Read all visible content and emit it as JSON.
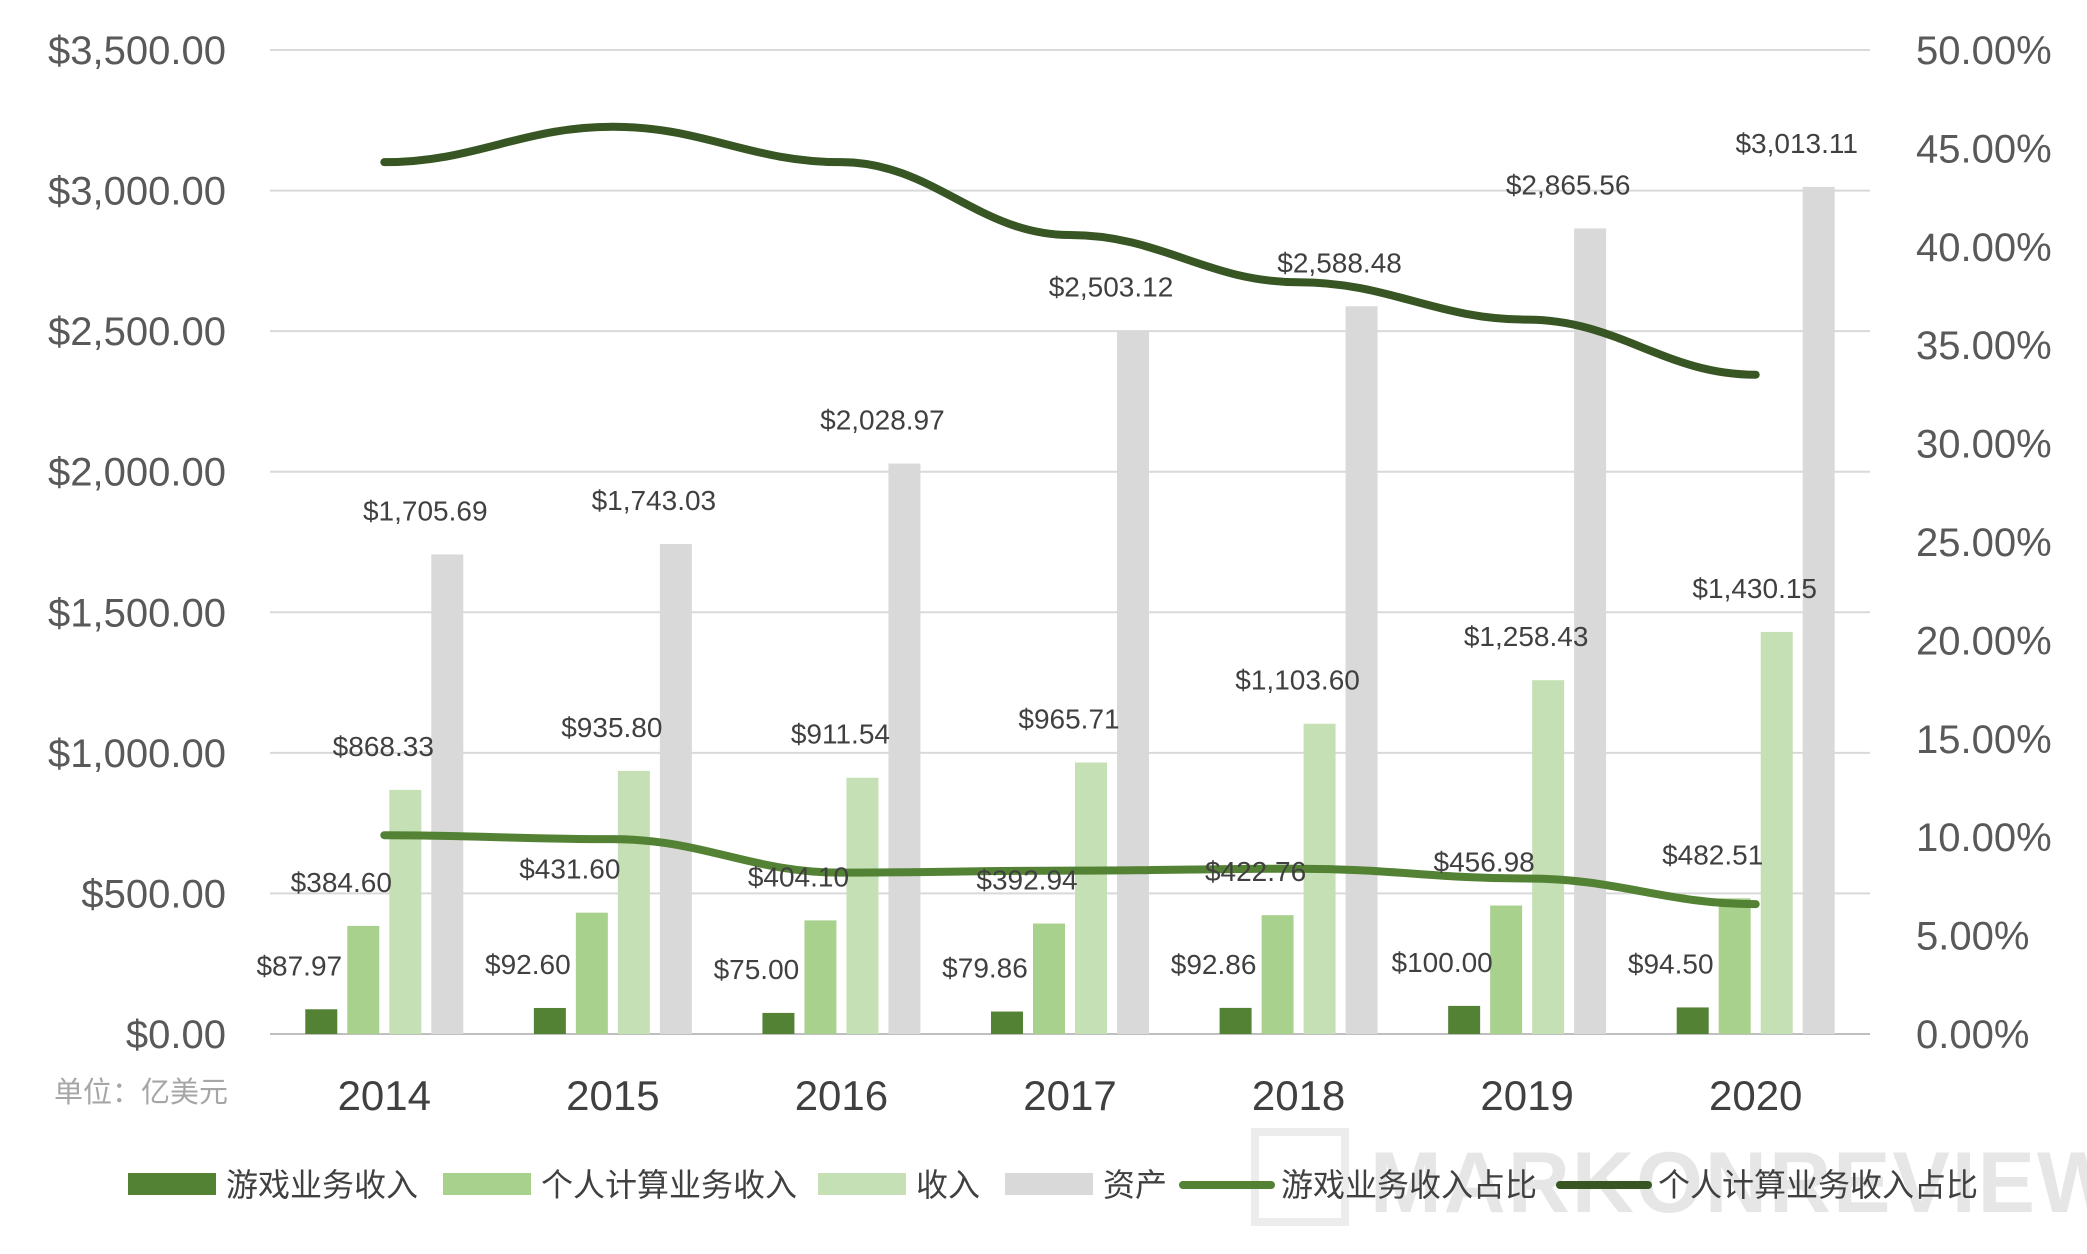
{
  "chart_data": {
    "type": "bar",
    "categories": [
      "2014",
      "2015",
      "2016",
      "2017",
      "2018",
      "2019",
      "2020"
    ],
    "series": [
      {
        "name": "游戏业务收入",
        "kind": "bar",
        "axis": "left",
        "color": "#548235",
        "values": [
          87.97,
          92.6,
          75.0,
          79.86,
          92.86,
          100.0,
          94.5
        ],
        "labels": [
          "$87.97",
          "$92.60",
          "$75.00",
          "$79.86",
          "$92.86",
          "$100.00",
          "$94.50"
        ]
      },
      {
        "name": "个人计算业务收入",
        "kind": "bar",
        "axis": "left",
        "color": "#a9d18e",
        "values": [
          384.6,
          431.6,
          404.1,
          392.94,
          422.76,
          456.98,
          482.51
        ],
        "labels": [
          "$384.60",
          "$431.60",
          "$404.10",
          "$392.94",
          "$422.76",
          "$456.98",
          "$482.51"
        ]
      },
      {
        "name": "收入",
        "kind": "bar",
        "axis": "left",
        "color": "#c5e0b4",
        "values": [
          868.33,
          935.8,
          911.54,
          965.71,
          1103.6,
          1258.43,
          1430.15
        ],
        "labels": [
          "$868.33",
          "$935.80",
          "$911.54",
          "$965.71",
          "$1,103.60",
          "$1,258.43",
          "$1,430.15"
        ]
      },
      {
        "name": "资产",
        "kind": "bar",
        "axis": "left",
        "color": "#d9d9d9",
        "values": [
          1705.69,
          1743.03,
          2028.97,
          2503.12,
          2588.48,
          2865.56,
          3013.11
        ],
        "labels": [
          "$1,705.69",
          "$1,743.03",
          "$2,028.97",
          "$2,503.12",
          "$2,588.48",
          "$2,865.56",
          "$3,013.11"
        ]
      },
      {
        "name": "游戏业务收入占比",
        "kind": "line",
        "axis": "right",
        "color": "#548235",
        "values": [
          10.1,
          9.9,
          8.2,
          8.3,
          8.4,
          7.9,
          6.6
        ]
      },
      {
        "name": "个人计算业务收入占比",
        "kind": "line",
        "axis": "right",
        "color": "#375623",
        "values": [
          44.3,
          46.1,
          44.3,
          40.6,
          38.2,
          36.3,
          33.5
        ]
      }
    ],
    "y_left": {
      "ylim": [
        0,
        3500
      ],
      "ticks": [
        "$0.00",
        "$500.00",
        "$1,000.00",
        "$1,500.00",
        "$2,000.00",
        "$2,500.00",
        "$3,000.00",
        "$3,500.00"
      ]
    },
    "y_right": {
      "ylim": [
        0,
        50
      ],
      "ticks": [
        "0.00%",
        "5.00%",
        "10.00%",
        "15.00%",
        "20.00%",
        "25.00%",
        "30.00%",
        "35.00%",
        "40.00%",
        "45.00%",
        "50.00%"
      ]
    },
    "unit_note": "单位：亿美元",
    "grid": true,
    "legend_position": "bottom"
  },
  "watermark": "MARKONREVIEW"
}
